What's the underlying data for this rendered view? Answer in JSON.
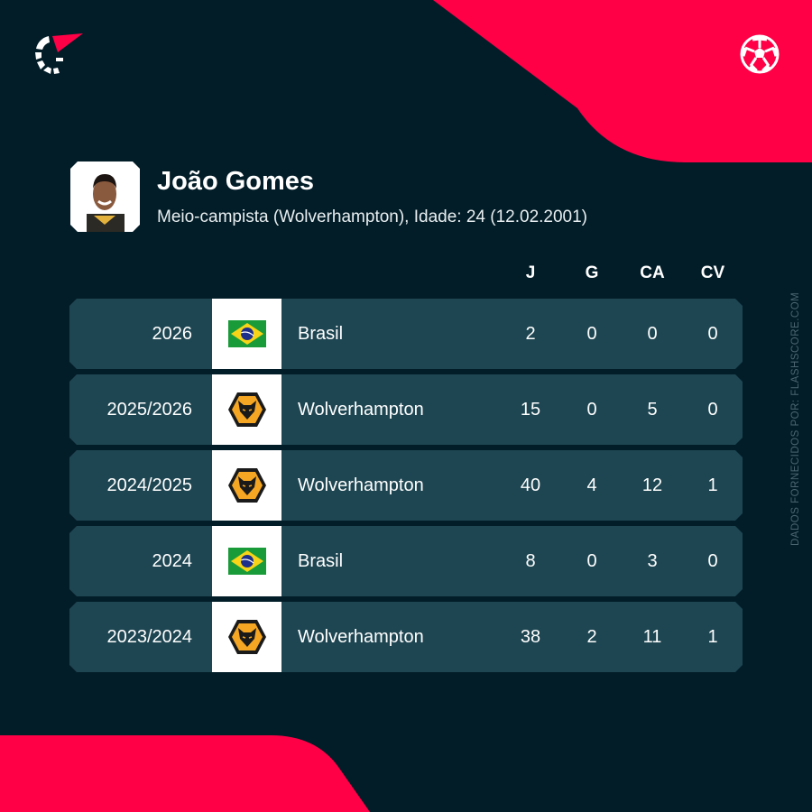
{
  "brand": {
    "accent": "#ff0046",
    "background": "#021d28",
    "row": "#1e4652"
  },
  "player": {
    "name": "João Gomes",
    "subtitle": "Meio-campista (Wolverhampton), Idade: 24 (12.02.2001)"
  },
  "headers": [
    "J",
    "G",
    "CA",
    "CV"
  ],
  "rows": [
    {
      "season": "2026",
      "team": "Brasil",
      "icon": "brazil-flag-icon",
      "values": [
        "2",
        "0",
        "0",
        "0"
      ]
    },
    {
      "season": "2025/2026",
      "team": "Wolverhampton",
      "icon": "wolves-crest-icon",
      "values": [
        "15",
        "0",
        "5",
        "0"
      ]
    },
    {
      "season": "2024/2025",
      "team": "Wolverhampton",
      "icon": "wolves-crest-icon",
      "values": [
        "40",
        "4",
        "12",
        "1"
      ]
    },
    {
      "season": "2024",
      "team": "Brasil",
      "icon": "brazil-flag-icon",
      "values": [
        "8",
        "0",
        "3",
        "0"
      ]
    },
    {
      "season": "2023/2024",
      "team": "Wolverhampton",
      "icon": "wolves-crest-icon",
      "values": [
        "38",
        "2",
        "11",
        "1"
      ]
    }
  ],
  "credit": "DADOS FORNECIDOS POR: FLASHSCORE.COM"
}
